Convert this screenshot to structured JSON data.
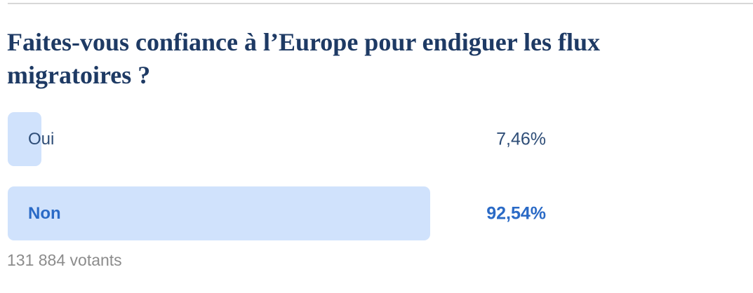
{
  "poll": {
    "question": "Faites-vous confiance à l’Europe pour endiguer les flux migratoires ?",
    "options": [
      {
        "label": "Oui",
        "percent_label": "7,46%",
        "percent_value": 7.46,
        "leading": false
      },
      {
        "label": "Non",
        "percent_label": "92,54%",
        "percent_value": 92.54,
        "leading": true
      }
    ],
    "votes_text": "131 884 votants"
  },
  "colors": {
    "title": "#1e3a64",
    "bar_fill": "#d0e2fc",
    "option_text": "#2e4d77",
    "leading_text": "#2a6ac6",
    "votes_text": "#8c8c8c",
    "divider": "#d8d8d8"
  },
  "chart_data": {
    "type": "bar",
    "orientation": "horizontal",
    "title": "Faites-vous confiance à l’Europe pour endiguer les flux migratoires ?",
    "categories": [
      "Oui",
      "Non"
    ],
    "values": [
      7.46,
      92.54
    ],
    "value_labels": [
      "7,46%",
      "92,54%"
    ],
    "xlim": [
      0,
      100
    ],
    "grid": false,
    "legend": false,
    "footnote": "131 884 votants"
  }
}
